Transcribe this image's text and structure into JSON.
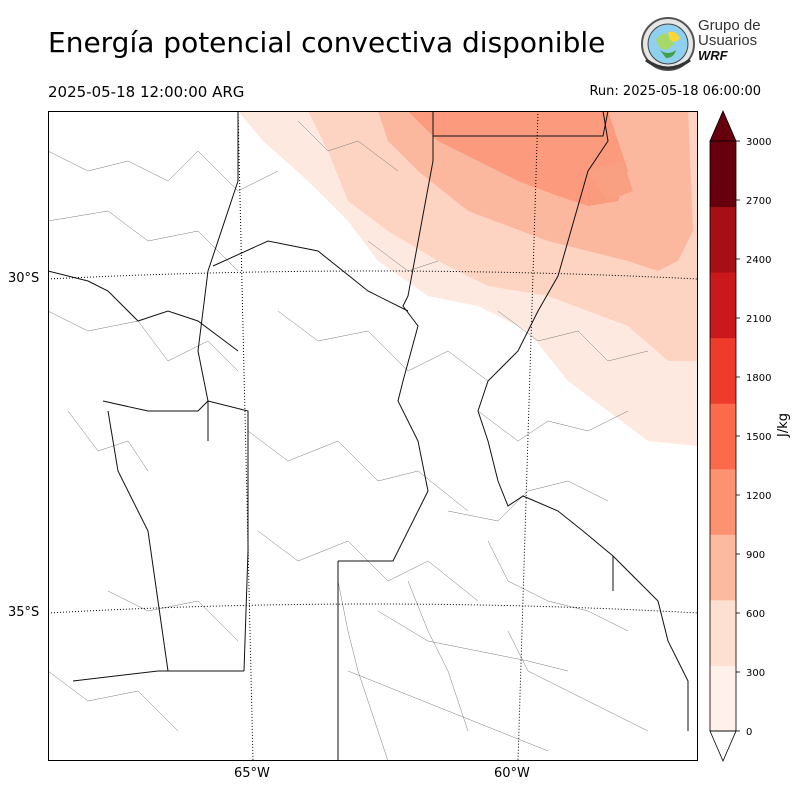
{
  "title": "Energía potencial convectiva disponible",
  "valid_time": "2025-05-18 12:00:00 ARG",
  "run_time": "Run: 2025-05-18 06:00:00",
  "logo": {
    "line1": "Grupo de",
    "line2": "Usuarios",
    "line3": "WRF"
  },
  "map": {
    "lat_labels": [
      "30°S",
      "35°S"
    ],
    "lon_labels": [
      "65°W",
      "60°W"
    ]
  },
  "colorbar": {
    "unit": "J/kg",
    "ticks": [
      "0",
      "300",
      "600",
      "900",
      "1200",
      "1500",
      "1800",
      "2100",
      "2400",
      "2700",
      "3000"
    ],
    "colors": [
      "#fff0eb",
      "#fee0d2",
      "#fcbba1",
      "#fc9272",
      "#fb6a4a",
      "#ef3b2c",
      "#cb181d",
      "#a50f15",
      "#67000d"
    ],
    "levels": [
      0,
      300,
      600,
      900,
      1200,
      1500,
      1800,
      2100,
      2400,
      2700,
      3000
    ]
  }
}
